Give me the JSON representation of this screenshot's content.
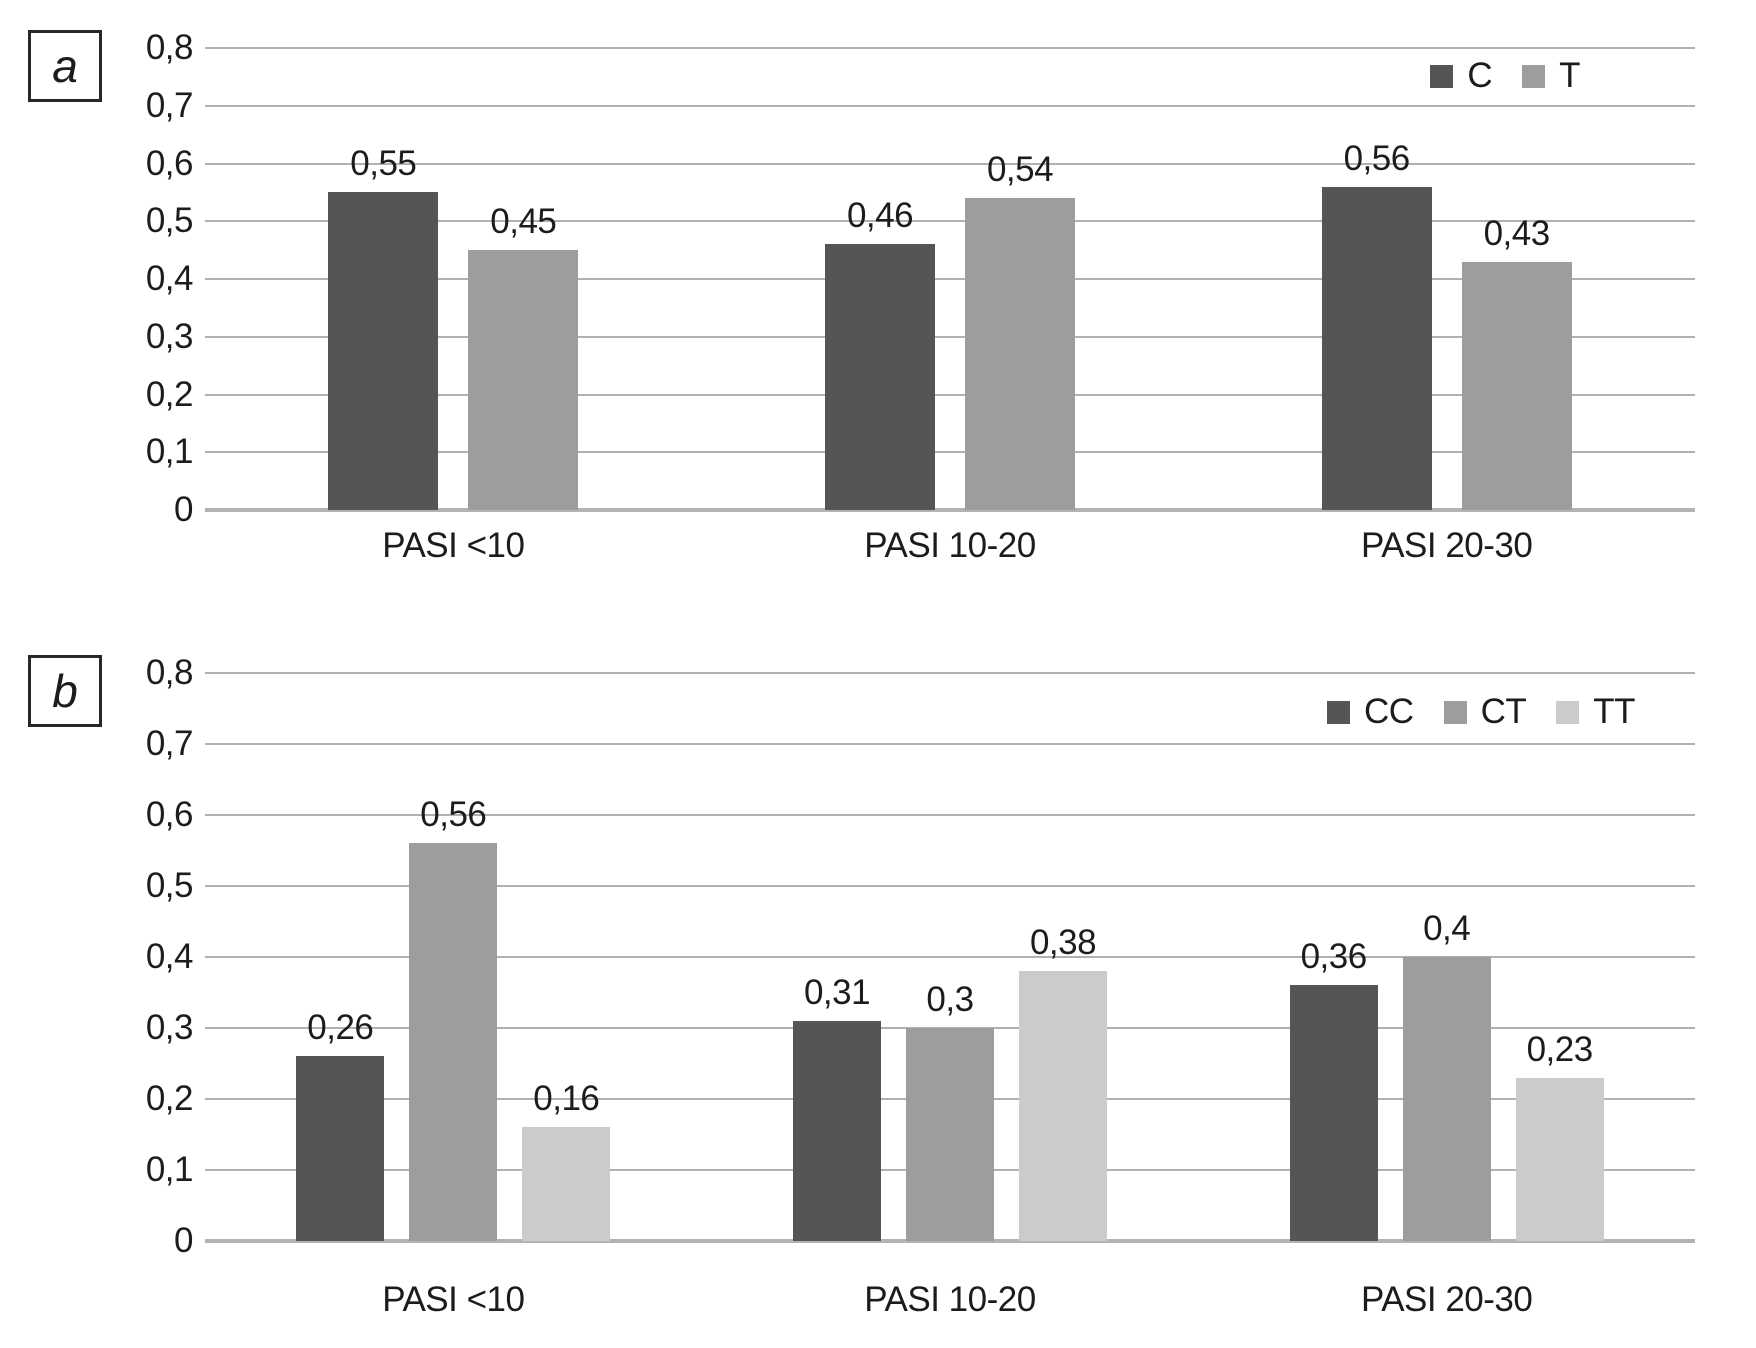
{
  "chart_data": [
    {
      "type": "bar",
      "panel_label": "a",
      "title": "",
      "xlabel": "",
      "ylabel": "",
      "categories": [
        "PASI <10",
        "PASI 10-20",
        "PASI 20-30"
      ],
      "series": [
        {
          "name": "C",
          "color": "#575457",
          "values": [
            0.55,
            0.46,
            0.56
          ],
          "value_labels": [
            "0,55",
            "0,46",
            "0,56"
          ]
        },
        {
          "name": "T",
          "color": "#9e9d9b",
          "values": [
            0.45,
            0.54,
            0.43
          ],
          "value_labels": [
            "0,45",
            "0,54",
            "0,43"
          ]
        }
      ],
      "ylim": [
        0,
        0.8
      ],
      "ytick_labels": [
        "0,8",
        "0,7",
        "0,6",
        "0,5",
        "0,4",
        "0,3",
        "0,2",
        "0,1",
        "0"
      ],
      "grid": true,
      "legend_position": "top-right"
    },
    {
      "type": "bar",
      "panel_label": "b",
      "title": "",
      "xlabel": "",
      "ylabel": "",
      "categories": [
        "PASI <10",
        "PASI 10-20",
        "PASI 20-30"
      ],
      "series": [
        {
          "name": "CC",
          "color": "#575457",
          "values": [
            0.26,
            0.31,
            0.36
          ],
          "value_labels": [
            "0,26",
            "0,31",
            "0,36"
          ]
        },
        {
          "name": "CT",
          "color": "#9e9d9b",
          "values": [
            0.56,
            0.3,
            0.4
          ],
          "value_labels": [
            "0,56",
            "0,3",
            "0,4"
          ]
        },
        {
          "name": "TT",
          "color": "#cbcbcb",
          "values": [
            0.16,
            0.38,
            0.23
          ],
          "value_labels": [
            "0,16",
            "0,38",
            "0,23"
          ]
        }
      ],
      "ylim": [
        0,
        0.8
      ],
      "ytick_labels": [
        "0,8",
        "0,7",
        "0,6",
        "0,5",
        "0,4",
        "0,3",
        "0,2",
        "0,1",
        "0"
      ],
      "grid": true,
      "legend_position": "top-right"
    }
  ],
  "colors": {
    "gridline": "#b1b1b1",
    "baseline": "#b3b3b3",
    "text": "#1c1b1d",
    "background": "#ffffff"
  }
}
